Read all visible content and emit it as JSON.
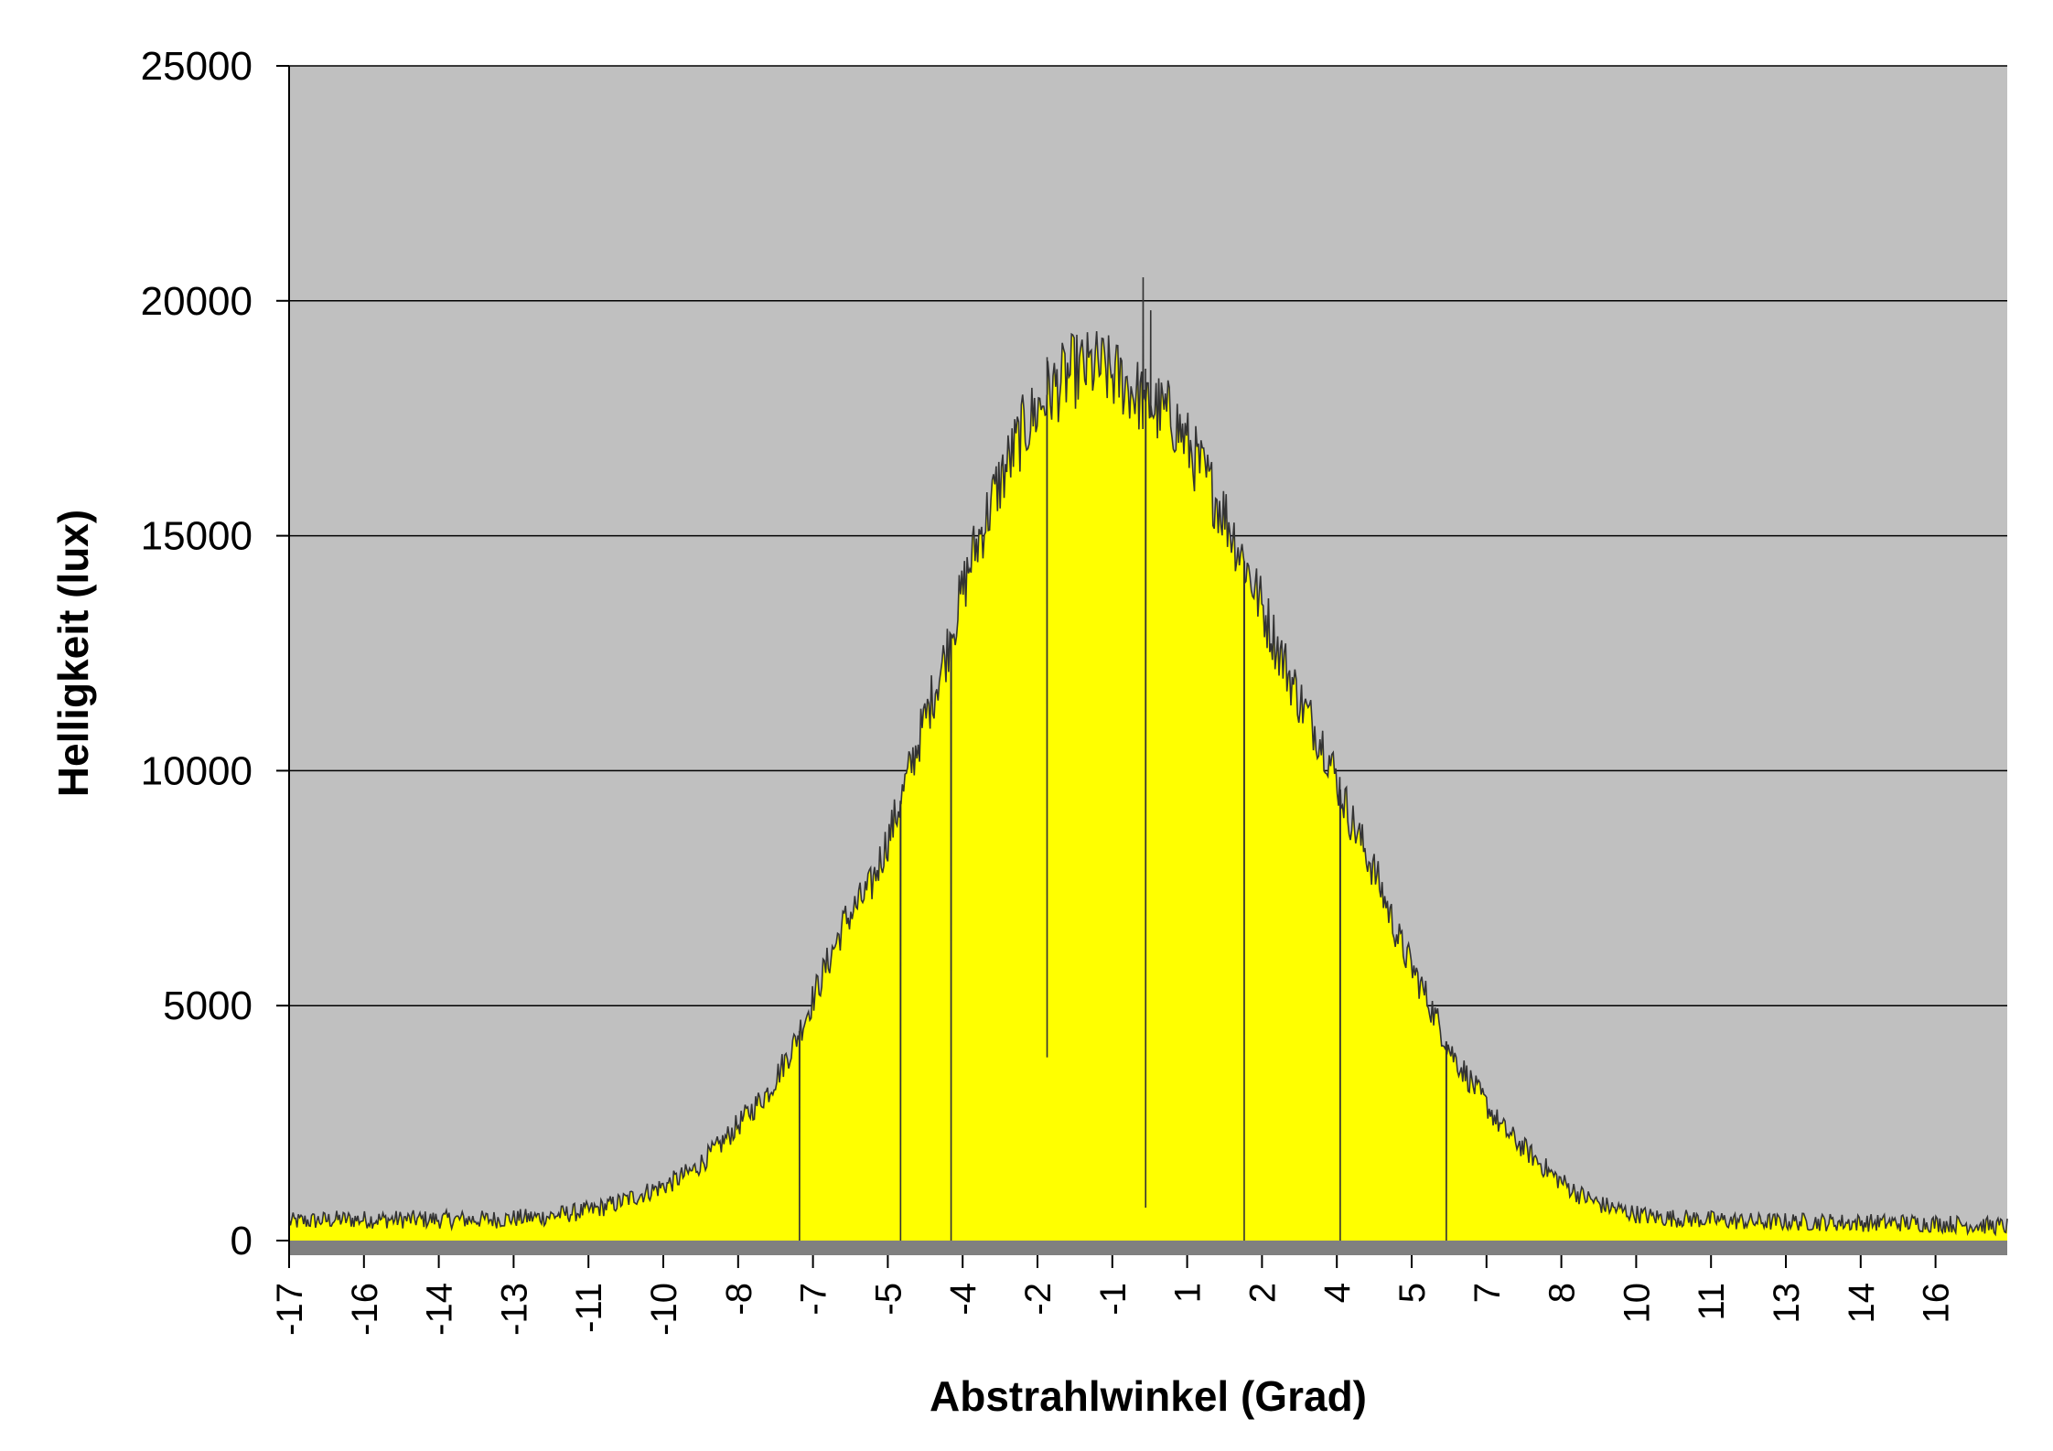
{
  "chart_data": {
    "type": "area",
    "title": "",
    "xlabel": "Abstrahlwinkel (Grad)",
    "ylabel": "Helligkeit (lux)",
    "ylim": [
      0,
      25000
    ],
    "y_ticks": [
      0,
      5000,
      10000,
      15000,
      20000,
      25000
    ],
    "x_tick_labels": [
      "-17",
      "-16",
      "-14",
      "-13",
      "-11",
      "-10",
      "-8",
      "-7",
      "-5",
      "-4",
      "-2",
      "-1",
      "1",
      "2",
      "4",
      "5",
      "7",
      "8",
      "10",
      "11",
      "13",
      "14",
      "16"
    ],
    "grid": true,
    "legend": "none",
    "colors": {
      "plot_background": "#c0c0c0",
      "fill": "#ffff00",
      "line": "#333333",
      "gridline": "#000000",
      "floor": "#808080"
    },
    "series": [
      {
        "x": [
          -17,
          -16,
          -15,
          -14,
          -13,
          -12,
          -11,
          -10.5,
          -10,
          -9.5,
          -9,
          -8.5,
          -8,
          -7.5,
          -7,
          -6.5,
          -6,
          -5.5,
          -5,
          -4.5,
          -4,
          -3.5,
          -3,
          -2.5,
          -2,
          -1.5,
          -1,
          -0.5,
          0,
          0.5,
          1,
          1.5,
          2,
          2.5,
          3,
          3.5,
          4,
          4.5,
          5,
          5.5,
          6,
          6.5,
          7,
          7.5,
          8,
          8.5,
          9,
          9.5,
          10,
          11,
          12,
          13,
          14,
          15,
          16,
          17
        ],
        "values": [
          400,
          450,
          450,
          450,
          450,
          500,
          650,
          800,
          1000,
          1200,
          1500,
          2000,
          2600,
          3200,
          4200,
          5500,
          6800,
          7500,
          9000,
          10800,
          12500,
          14500,
          16000,
          17200,
          18000,
          18500,
          18600,
          18300,
          17800,
          17500,
          16500,
          15500,
          14200,
          12800,
          11500,
          10500,
          9000,
          7800,
          6300,
          5200,
          4000,
          3200,
          2400,
          1900,
          1400,
          1000,
          750,
          600,
          500,
          450,
          400,
          400,
          380,
          380,
          350,
          300
        ],
        "dips": [
          {
            "x": -6.9,
            "value": 0
          },
          {
            "x": -4.9,
            "value": 0
          },
          {
            "x": -3.9,
            "value": 0
          },
          {
            "x": -2.0,
            "value": 3900
          },
          {
            "x": -0.05,
            "value": 700
          },
          {
            "x": 1.9,
            "value": 0
          },
          {
            "x": 3.8,
            "value": 0
          },
          {
            "x": 5.9,
            "value": 0
          }
        ],
        "spikes": [
          {
            "x": -2.0,
            "value": 18800
          },
          {
            "x": -0.1,
            "value": 20500
          },
          {
            "x": 0.05,
            "value": 19800
          }
        ]
      }
    ]
  }
}
